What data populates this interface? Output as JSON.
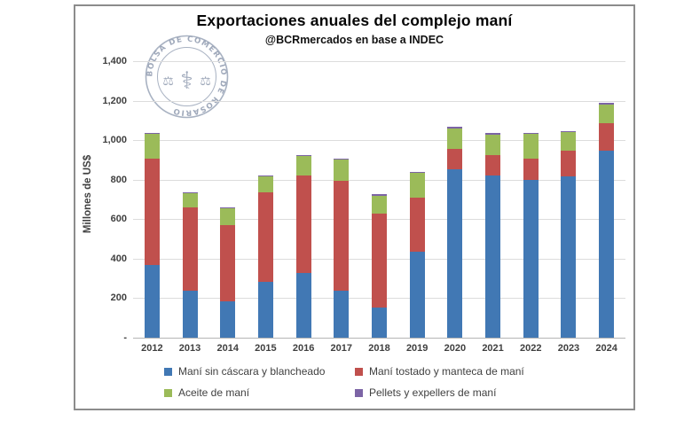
{
  "logo": {
    "ring_text": "BOLSA DE COMERCIO DE ROSARIO",
    "icons": [
      "scales-icon",
      "caduceus-icon",
      "scales-icon"
    ]
  },
  "chart_data": {
    "type": "bar",
    "stacked": true,
    "title": "Exportaciones anuales del complejo maní",
    "subtitle": "@BCRmercados en base a INDEC",
    "ylabel": "Millones de US$",
    "xlabel": "",
    "ylim": [
      0,
      1400
    ],
    "grid": true,
    "legend_position": "bottom",
    "categories": [
      "2012",
      "2013",
      "2014",
      "2015",
      "2016",
      "2017",
      "2018",
      "2019",
      "2020",
      "2021",
      "2022",
      "2023",
      "2024"
    ],
    "yticks": [
      {
        "value": 1400,
        "label": "1,400"
      },
      {
        "value": 1200,
        "label": "1,200"
      },
      {
        "value": 1000,
        "label": "1,000"
      },
      {
        "value": 800,
        "label": "800"
      },
      {
        "value": 600,
        "label": "600"
      },
      {
        "value": 400,
        "label": "400"
      },
      {
        "value": 200,
        "label": "200"
      },
      {
        "value": 0,
        "label": "-"
      }
    ],
    "series": [
      {
        "name": "Maní sin cáscara y blancheado",
        "color": "#4178b4",
        "values": [
          370,
          240,
          185,
          285,
          330,
          240,
          155,
          435,
          855,
          820,
          800,
          815,
          945
        ]
      },
      {
        "name": "Maní tostado y manteca de maní",
        "color": "#c0504d",
        "values": [
          535,
          420,
          385,
          450,
          490,
          555,
          475,
          275,
          100,
          105,
          105,
          130,
          140
        ]
      },
      {
        "name": "Aceite de maní",
        "color": "#9bbb59",
        "values": [
          125,
          70,
          85,
          80,
          100,
          105,
          90,
          125,
          105,
          105,
          125,
          95,
          95
        ]
      },
      {
        "name": "Pellets y expellers de maní",
        "color": "#7c64a5",
        "values": [
          8,
          5,
          5,
          5,
          6,
          5,
          5,
          6,
          8,
          6,
          7,
          6,
          7
        ]
      }
    ]
  }
}
